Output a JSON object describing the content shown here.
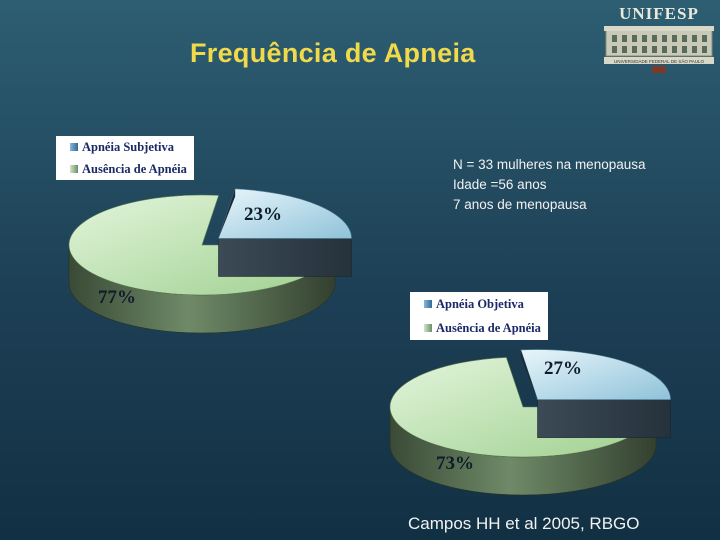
{
  "slide": {
    "title": "Frequência de Apneia",
    "logo_text": "UNIFESP",
    "logo_sub": "UNIVERSIDADE FEDERAL DE SÃO PAULO",
    "note_lines": [
      "N = 33 mulheres na menopausa",
      "Idade =56 anos",
      "7 anos de menopausa"
    ],
    "citation": "Campos HH et al 2005, RBGO"
  },
  "chart_data": [
    {
      "type": "pie",
      "categories": [
        "Apnéia Subjetiva",
        "Ausência de Apnéia"
      ],
      "values": [
        23,
        77
      ],
      "labels": [
        "23%",
        "77%"
      ],
      "colors": [
        "#b7dbea",
        "#b9e2ae"
      ],
      "legend": "top-left"
    },
    {
      "type": "pie",
      "categories": [
        "Apnéia Objetiva",
        "Ausência de Apnéia"
      ],
      "values": [
        27,
        73
      ],
      "labels": [
        "27%",
        "73%"
      ],
      "colors": [
        "#b7dbea",
        "#b9e2ae"
      ],
      "legend": "top-left"
    }
  ]
}
